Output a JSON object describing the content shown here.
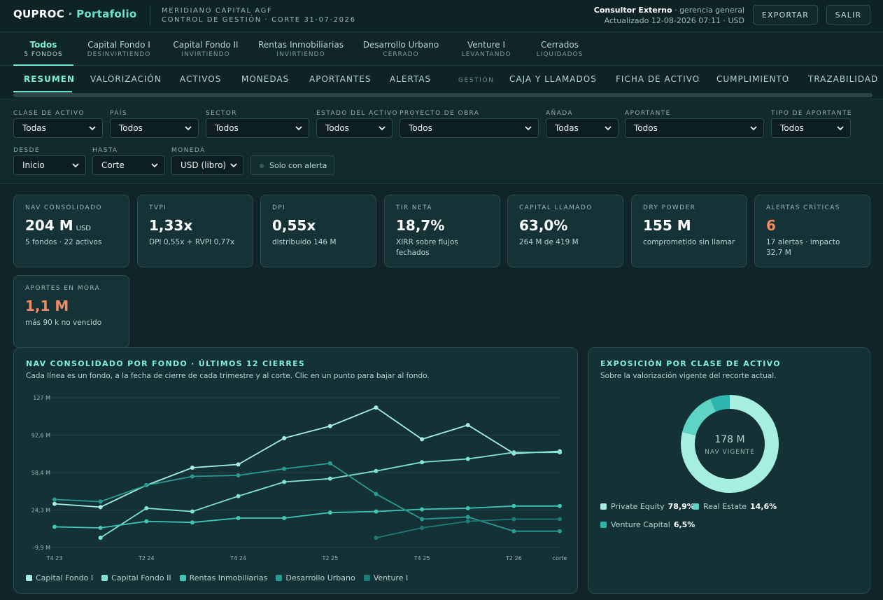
{
  "brand": {
    "name": "QUPROC",
    "section": "Portafolio"
  },
  "org": {
    "line1": "MERIDIANO CAPITAL AGF",
    "line2": "CONTROL DE GESTIÓN · CORTE 31-07-2026"
  },
  "user": {
    "name": "Consultor Externo",
    "role": "· gerencia general",
    "updated": "Actualizado 12-08-2026 07:11 · USD"
  },
  "actions": {
    "export": "EXPORTAR",
    "logout": "SALIR"
  },
  "funds": [
    {
      "name": "Todos",
      "status": "5 FONDOS"
    },
    {
      "name": "Capital Fondo I",
      "status": "DESINVIRTIENDO"
    },
    {
      "name": "Capital Fondo II",
      "status": "INVIRTIENDO"
    },
    {
      "name": "Rentas Inmobiliarias",
      "status": "INVIRTIENDO"
    },
    {
      "name": "Desarrollo Urbano",
      "status": "CERRADO"
    },
    {
      "name": "Venture I",
      "status": "LEVANTANDO"
    },
    {
      "name": "Cerrados",
      "status": "LIQUIDADOS"
    }
  ],
  "nav": {
    "tabs": [
      "RESUMEN",
      "VALORIZACIÓN",
      "ACTIVOS",
      "MONEDAS",
      "APORTANTES",
      "ALERTAS"
    ],
    "group_label": "GESTIÓN",
    "gestion_tabs": [
      "CAJA Y LLAMADOS",
      "FICHA DE ACTIVO",
      "CUMPLIMIENTO",
      "TRAZABILIDAD"
    ]
  },
  "filters": [
    {
      "label": "CLASE DE ACTIVO",
      "value": "Todas"
    },
    {
      "label": "PAÍS",
      "value": "Todos"
    },
    {
      "label": "SECTOR",
      "value": "Todos"
    },
    {
      "label": "ESTADO DEL ACTIVO",
      "value": "Todos"
    },
    {
      "label": "PROYECTO DE OBRA",
      "value": "Todos"
    },
    {
      "label": "AÑADA",
      "value": "Todas"
    },
    {
      "label": "APORTANTE",
      "value": "Todos"
    },
    {
      "label": "TIPO DE APORTANTE",
      "value": "Todos"
    },
    {
      "label": "DESDE",
      "value": "Inicio"
    },
    {
      "label": "HASTA",
      "value": "Corte"
    },
    {
      "label": "MONEDA",
      "value": "USD (libro)"
    }
  ],
  "alert_toggle": "Solo con alerta",
  "kpis": [
    {
      "title": "NAV CONSOLIDADO",
      "value": "204 M",
      "unit": "USD",
      "detail": "5 fondos · 22 activos",
      "alert": false
    },
    {
      "title": "TVPI",
      "value": "1,33x",
      "unit": "",
      "detail": "DPI 0,55x + RVPI 0,77x",
      "alert": false
    },
    {
      "title": "DPI",
      "value": "0,55x",
      "unit": "",
      "detail": "distribuido 146 M",
      "alert": false
    },
    {
      "title": "TIR NETA",
      "value": "18,7%",
      "unit": "",
      "detail": "XIRR sobre flujos fechados",
      "alert": false
    },
    {
      "title": "CAPITAL LLAMADO",
      "value": "63,0%",
      "unit": "",
      "detail": "264 M de 419 M",
      "alert": false
    },
    {
      "title": "DRY POWDER",
      "value": "155 M",
      "unit": "",
      "detail": "comprometido sin llamar",
      "alert": false
    },
    {
      "title": "ALERTAS CRÍTICAS",
      "value": "6",
      "unit": "",
      "detail": "17 alertas · impacto 32,7 M",
      "alert": true
    },
    {
      "title": "APORTES EN MORA",
      "value": "1,1 M",
      "unit": "",
      "detail": "más 90 k no vencido",
      "alert": true
    }
  ],
  "nav_chart": {
    "title": "NAV CONSOLIDADO POR FONDO · ÚLTIMOS 12 CIERRES",
    "subtitle": "Cada línea es un fondo, a la fecha de cierre de cada trimestre y al corte. Clic en un punto para bajar al fondo."
  },
  "exposure_chart": {
    "title": "EXPOSICIÓN POR CLASE DE ACTIVO",
    "subtitle": "Sobre la valorización vigente del recorte actual.",
    "center_value": "178 M",
    "center_label": "NAV VIGENTE"
  },
  "colors": {
    "accent": "#6fe3cf",
    "alert": "#f08a63",
    "bg": "#0f2528",
    "panel": "#143135"
  },
  "chart_data": [
    {
      "type": "line",
      "title": "NAV CONSOLIDADO POR FONDO · ÚLTIMOS 12 CIERRES",
      "x": [
        "T4 23",
        "T1 24",
        "T2 24",
        "T3 24",
        "T4 24",
        "T1 25",
        "T2 25",
        "T3 25",
        "T4 25",
        "T1 26",
        "T2 26",
        "corte"
      ],
      "x_tick_labels": [
        "T4 23",
        "T2 24",
        "T4 24",
        "T2 25",
        "T4 25",
        "T2 26",
        "corte"
      ],
      "y_ticks": [
        "127 M",
        "92,6 M",
        "58,4 M",
        "24,3 M",
        "-9,9 M"
      ],
      "ylim": [
        -9.9,
        127
      ],
      "grid": true,
      "legend": "bottom",
      "series": [
        {
          "name": "Capital Fondo I",
          "color": "#a6eee0",
          "values": [
            30,
            27,
            47,
            63,
            66,
            90,
            101,
            118,
            89,
            102,
            76,
            78
          ]
        },
        {
          "name": "Capital Fondo II",
          "color": "#7fe3d1",
          "values": [
            null,
            -1,
            26,
            23,
            37,
            50,
            53,
            60,
            68,
            71,
            77,
            77
          ]
        },
        {
          "name": "Rentas Inmobiliarias",
          "color": "#3fc6b8",
          "values": [
            9,
            8,
            14,
            13,
            17,
            17,
            22,
            23,
            25,
            26,
            28,
            28
          ]
        },
        {
          "name": "Desarrollo Urbano",
          "color": "#2a9a94",
          "values": [
            34,
            32,
            47,
            55,
            56,
            62,
            67,
            39,
            16,
            18,
            5,
            5
          ]
        },
        {
          "name": "Venture I",
          "color": "#1d7b78",
          "values": [
            null,
            null,
            null,
            null,
            null,
            null,
            null,
            -1,
            8,
            14,
            16,
            16
          ]
        }
      ]
    },
    {
      "type": "pie",
      "title": "EXPOSICIÓN POR CLASE DE ACTIVO",
      "categories": [
        "Private Equity",
        "Real Estate",
        "Venture Capital"
      ],
      "values": [
        78.9,
        14.6,
        6.5
      ],
      "value_labels": [
        "78,9%",
        "14,6%",
        "6,5%"
      ],
      "colors": [
        "#a6eee0",
        "#5dd4c4",
        "#2db5ad"
      ],
      "center_value": "178 M",
      "center_label": "NAV VIGENTE",
      "legend": "bottom"
    }
  ]
}
